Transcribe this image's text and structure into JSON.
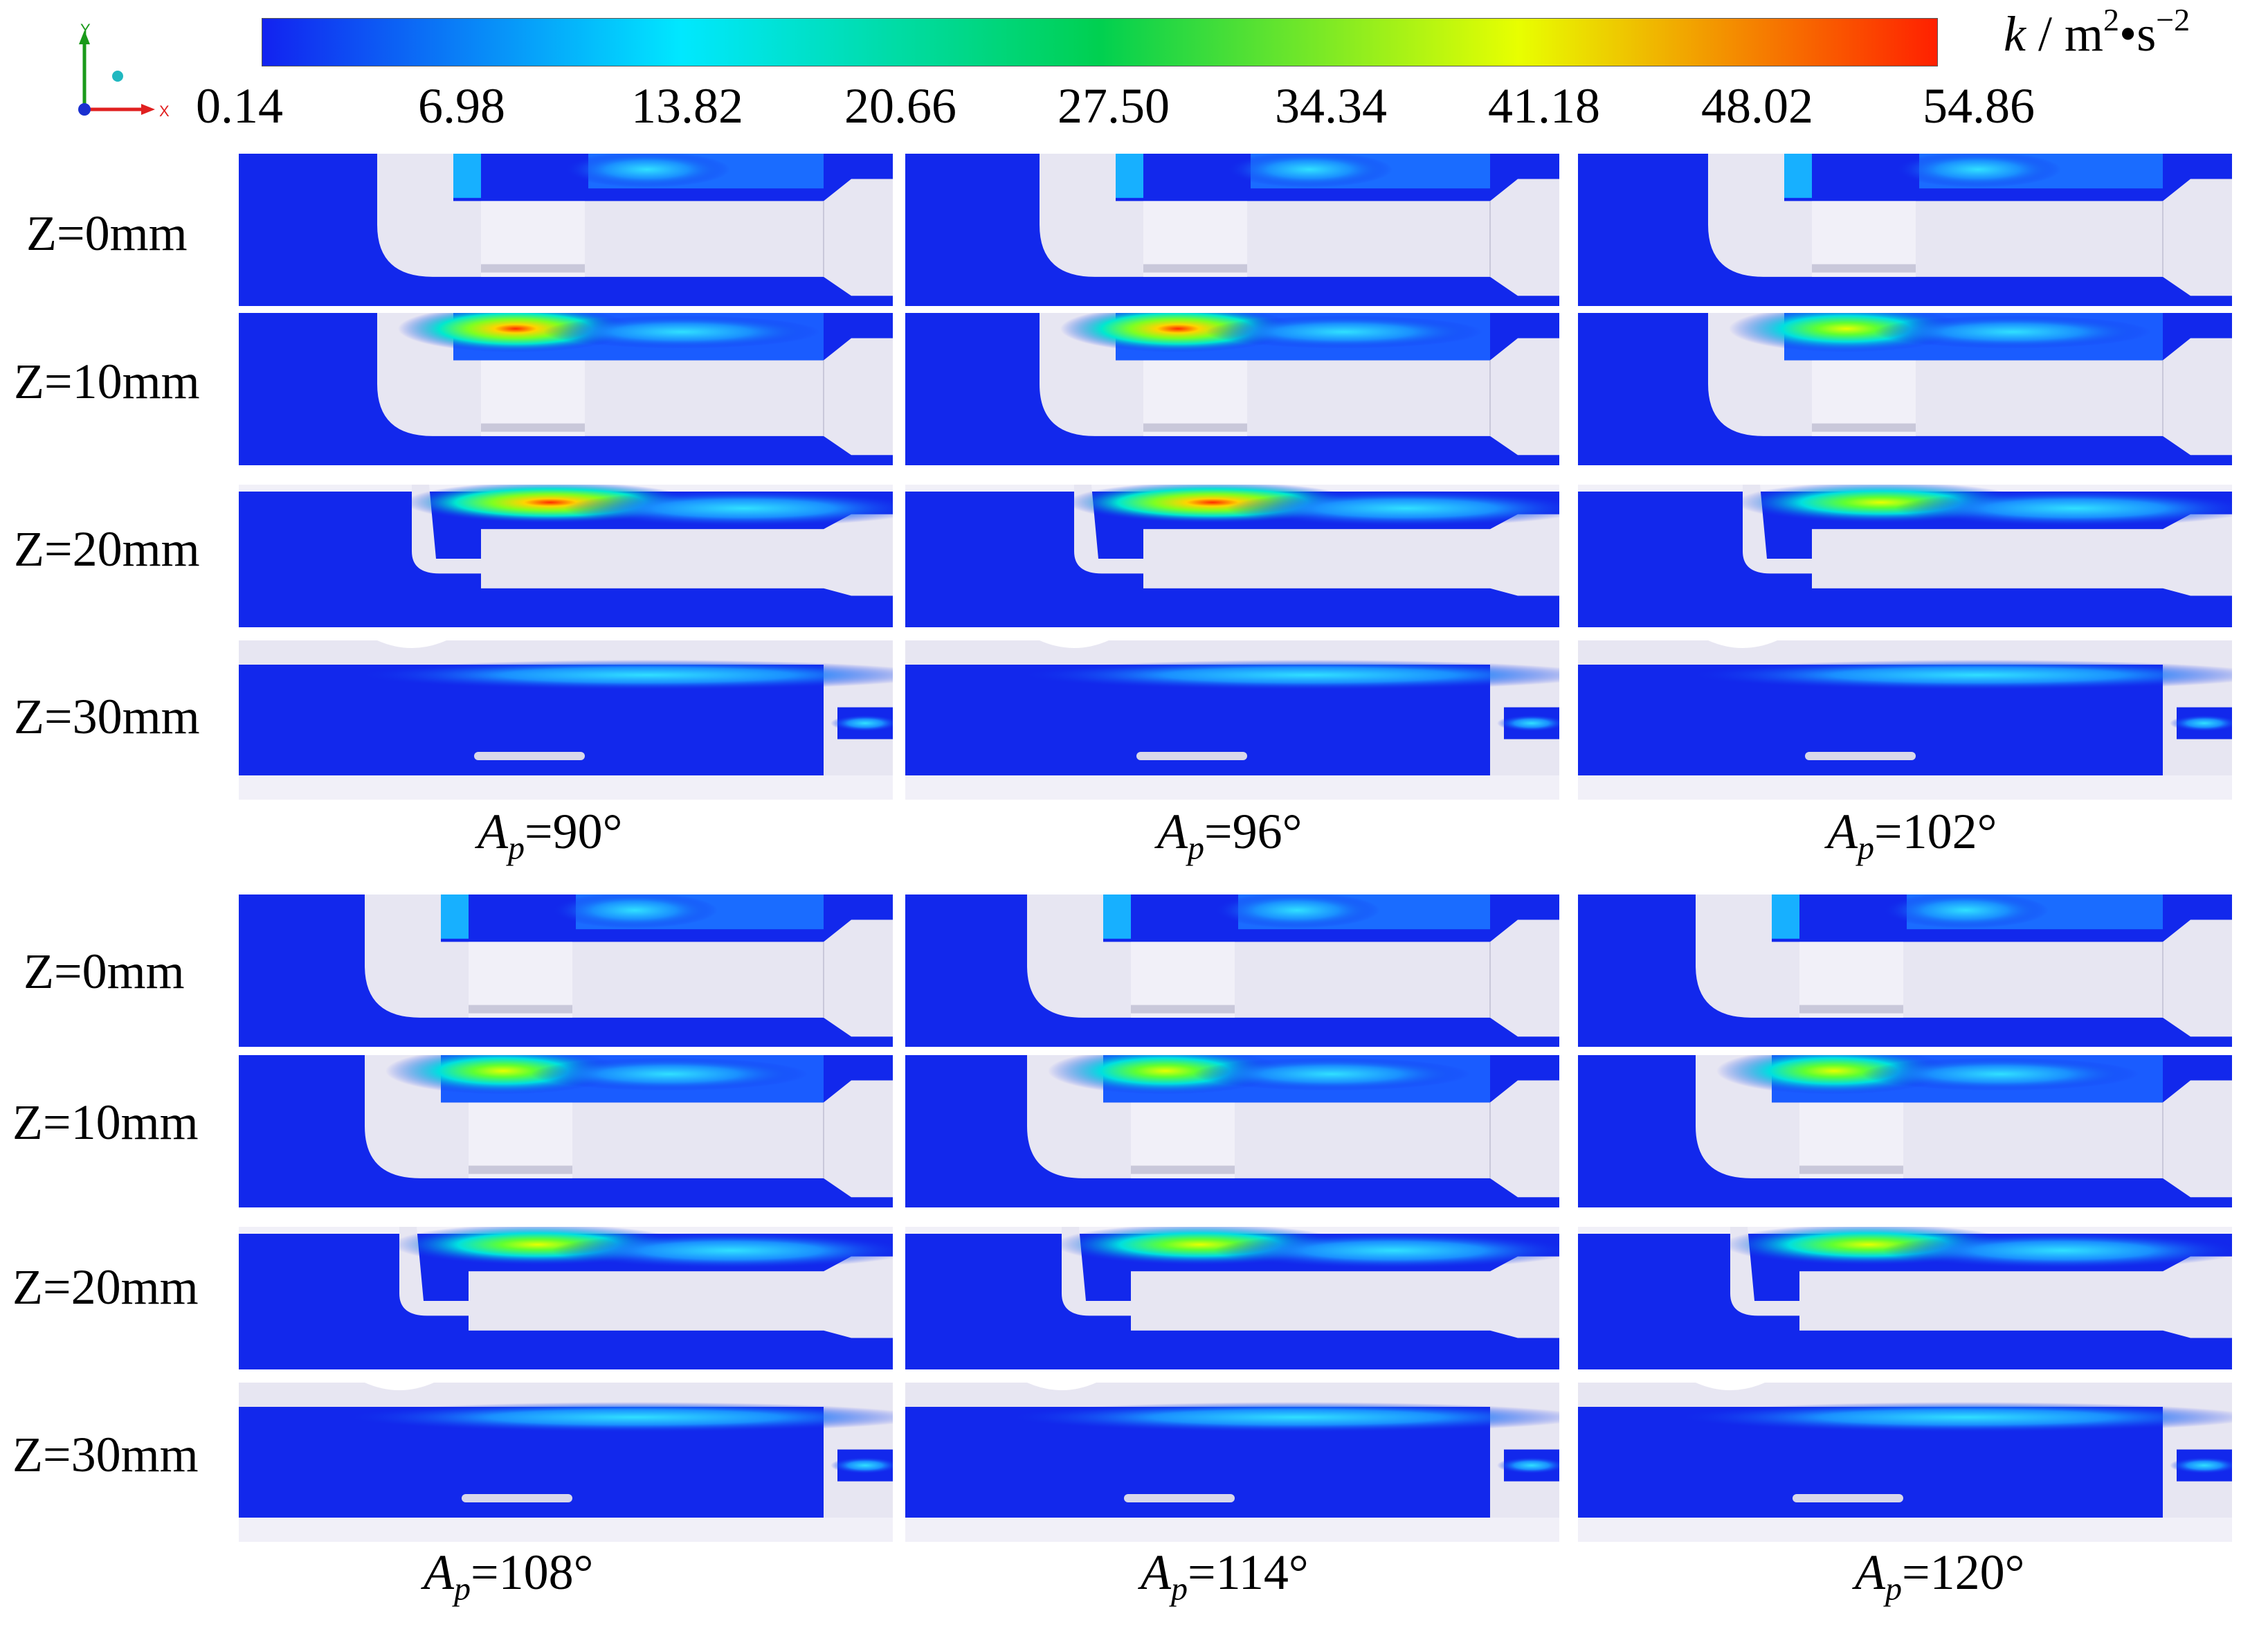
{
  "colorbar": {
    "ticks": [
      "0.14",
      "6.98",
      "13.82",
      "20.66",
      "27.50",
      "34.34",
      "41.18",
      "48.02",
      "54.86"
    ],
    "unit_var": "k",
    "unit_sep": " / m",
    "unit_sq": "2",
    "unit_mid": "•s",
    "unit_exp": "−2",
    "colors": [
      "#1222f0",
      "#00e8ff",
      "#00d050",
      "#e8ff00",
      "#ff2000"
    ]
  },
  "axes_triad": {
    "y_label": "Y",
    "x_label": "X"
  },
  "rows": [
    "Z=0mm",
    "Z=10mm",
    "Z=20mm",
    "Z=30mm"
  ],
  "cases": [
    {
      "var": "A",
      "sub": "p",
      "value": "=90°"
    },
    {
      "var": "A",
      "sub": "p",
      "value": "=96°"
    },
    {
      "var": "A",
      "sub": "p",
      "value": "=102°"
    },
    {
      "var": "A",
      "sub": "p",
      "value": "=108°"
    },
    {
      "var": "A",
      "sub": "p",
      "value": "=114°"
    },
    {
      "var": "A",
      "sub": "p",
      "value": "=120°"
    }
  ]
}
